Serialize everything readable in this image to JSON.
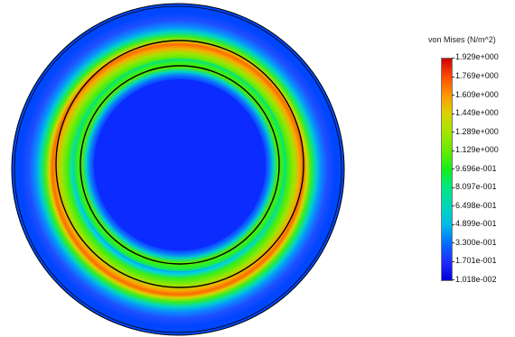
{
  "legend": {
    "title": "von Mises (N/m^2)",
    "labels": [
      "1.929e+000",
      "1.769e+000",
      "1.609e+000",
      "1.449e+000",
      "1.289e+000",
      "1.129e+000",
      "9.696e-001",
      "8.097e-001",
      "6.498e-001",
      "4.899e-001",
      "3.300e-001",
      "1.701e-001",
      "1.018e-002"
    ],
    "color_scale": [
      "#d00000",
      "#ff4a00",
      "#ff9a00",
      "#d9d400",
      "#a6e400",
      "#62ec00",
      "#14ef1a",
      "#00e882",
      "#00d6bd",
      "#00bce8",
      "#0070ff",
      "#1f2aff",
      "#0000d8"
    ]
  },
  "model": {
    "view": "top",
    "result": "von Mises stress plot",
    "colors": {
      "low": "#0000d8",
      "mid": "#14ef1a",
      "high": "#d00000",
      "background": "#ffffff",
      "outline": "#000000"
    }
  }
}
